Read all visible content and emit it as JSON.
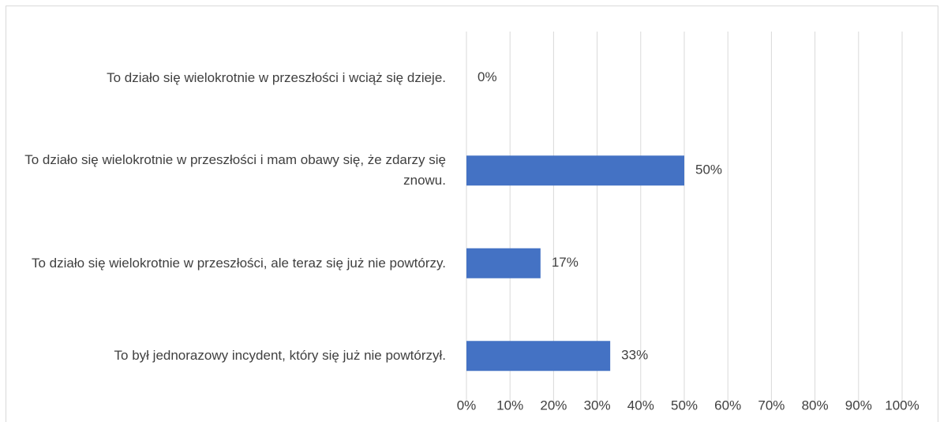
{
  "chart_data": {
    "type": "barh",
    "categories": [
      "To działo się wielokrotnie w przeszłości i wciąż się dzieje.",
      "To działo się wielokrotnie w przeszłości i mam obawy się, że zdarzy się znowu.",
      "To działo się wielokrotnie w przeszłości, ale teraz się już nie powtórzy.",
      "To był jednorazowy incydent, który się już nie powtórzył."
    ],
    "values": [
      0,
      50,
      17,
      33
    ],
    "value_labels": [
      "0%",
      "50%",
      "17%",
      "33%"
    ],
    "color": "#4472c4",
    "xlim": [
      0,
      100
    ],
    "xticks": [
      {
        "value": 0,
        "label": "0%"
      },
      {
        "value": 10,
        "label": "10%"
      },
      {
        "value": 20,
        "label": "20%"
      },
      {
        "value": 30,
        "label": "30%"
      },
      {
        "value": 40,
        "label": "40%"
      },
      {
        "value": 50,
        "label": "50%"
      },
      {
        "value": 60,
        "label": "60%"
      },
      {
        "value": 70,
        "label": "70%"
      },
      {
        "value": 80,
        "label": "80%"
      },
      {
        "value": 90,
        "label": "90%"
      },
      {
        "value": 100,
        "label": "100%"
      }
    ],
    "grid": true
  }
}
